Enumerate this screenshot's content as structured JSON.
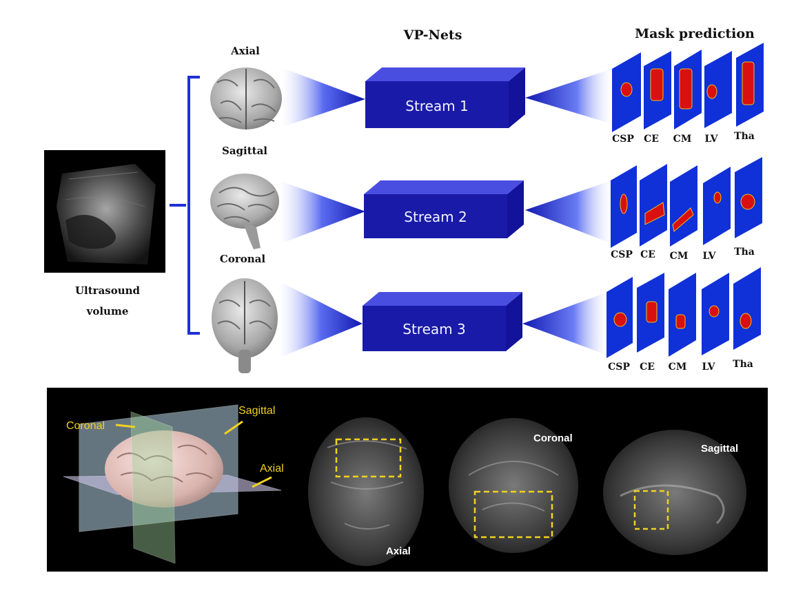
{
  "header": {
    "vpnets": "VP-Nets",
    "mask_prediction": "Mask prediction"
  },
  "input": {
    "line1": "Ultrasound",
    "line2": "volume"
  },
  "views": [
    {
      "label": "Axial",
      "stream": "Stream 1"
    },
    {
      "label": "Sagittal",
      "stream": "Stream 2"
    },
    {
      "label": "Coronal",
      "stream": "Stream 3"
    }
  ],
  "masks": {
    "labels": [
      "CSP",
      "CE",
      "CM",
      "LV",
      "Tha"
    ]
  },
  "bottom_panel": {
    "plane_labels": {
      "coronal": "Coronal",
      "sagittal": "Sagittal",
      "axial": "Axial"
    },
    "scan_labels": {
      "axial": "Axial",
      "coronal": "Coronal",
      "sagittal": "Sagittal"
    }
  },
  "colors": {
    "stream_box": "#1a1aa8",
    "mask_bg": "#1030d8",
    "mask_blob": "#d81010",
    "annotation": "#f2d21e"
  }
}
